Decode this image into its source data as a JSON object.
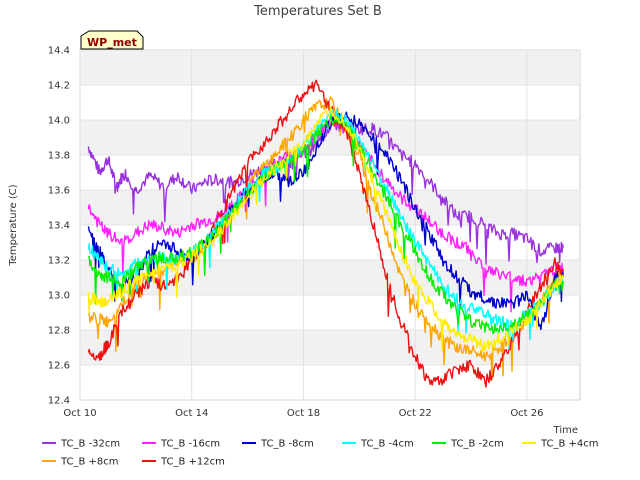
{
  "chart_data": {
    "type": "line",
    "title": "Temperatures Set B",
    "xlabel": "Time",
    "ylabel": "Temperature (C)",
    "badge": "WP_met",
    "ylim": [
      12.4,
      14.4
    ],
    "yticks": [
      "12.4",
      "12.6",
      "12.8",
      "13.0",
      "13.2",
      "13.4",
      "13.6",
      "13.8",
      "14.0",
      "14.2",
      "14.4"
    ],
    "xlim_days": [
      10,
      27.9
    ],
    "xticks": [
      {
        "day": 10,
        "label": "Oct 10"
      },
      {
        "day": 14,
        "label": "Oct 14"
      },
      {
        "day": 18,
        "label": "Oct 18"
      },
      {
        "day": 22,
        "label": "Oct 22"
      },
      {
        "day": 26,
        "label": "Oct 26"
      }
    ],
    "grid": true,
    "legend_position": "bottom",
    "series": [
      {
        "name": "TC_B -32cm",
        "color": "#9933dd",
        "points": [
          [
            10.3,
            13.85
          ],
          [
            10.7,
            13.7
          ],
          [
            11.0,
            13.78
          ],
          [
            11.3,
            13.62
          ],
          [
            11.6,
            13.7
          ],
          [
            12.0,
            13.6
          ],
          [
            12.5,
            13.68
          ],
          [
            13.0,
            13.62
          ],
          [
            13.5,
            13.68
          ],
          [
            14.0,
            13.6
          ],
          [
            14.5,
            13.65
          ],
          [
            15.0,
            13.66
          ],
          [
            15.5,
            13.64
          ],
          [
            16.0,
            13.68
          ],
          [
            16.5,
            13.72
          ],
          [
            17.0,
            13.75
          ],
          [
            17.5,
            13.8
          ],
          [
            18.0,
            13.8
          ],
          [
            18.5,
            13.86
          ],
          [
            19.0,
            13.98
          ],
          [
            19.5,
            13.95
          ],
          [
            20.0,
            13.95
          ],
          [
            20.5,
            13.95
          ],
          [
            21.0,
            13.9
          ],
          [
            21.5,
            13.8
          ],
          [
            22.0,
            13.75
          ],
          [
            22.5,
            13.65
          ],
          [
            23.0,
            13.55
          ],
          [
            23.5,
            13.45
          ],
          [
            24.0,
            13.45
          ],
          [
            24.5,
            13.4
          ],
          [
            25.0,
            13.35
          ],
          [
            25.5,
            13.35
          ],
          [
            26.0,
            13.32
          ],
          [
            26.5,
            13.25
          ],
          [
            27.0,
            13.27
          ],
          [
            27.3,
            13.27
          ]
        ]
      },
      {
        "name": "TC_B +8cm",
        "color": "#ffa500",
        "points": [
          [
            10.3,
            12.88
          ],
          [
            10.7,
            12.86
          ],
          [
            11.0,
            12.85
          ],
          [
            11.5,
            12.95
          ],
          [
            12.0,
            13.05
          ],
          [
            12.5,
            13.12
          ],
          [
            13.0,
            13.15
          ],
          [
            13.5,
            13.2
          ],
          [
            14.0,
            13.2
          ],
          [
            14.5,
            13.28
          ],
          [
            15.0,
            13.38
          ],
          [
            15.5,
            13.5
          ],
          [
            16.0,
            13.62
          ],
          [
            16.5,
            13.72
          ],
          [
            17.0,
            13.8
          ],
          [
            17.5,
            13.9
          ],
          [
            18.0,
            14.0
          ],
          [
            18.5,
            14.08
          ],
          [
            19.0,
            14.1
          ],
          [
            19.5,
            13.95
          ],
          [
            20.0,
            13.8
          ],
          [
            20.5,
            13.55
          ],
          [
            21.0,
            13.35
          ],
          [
            21.5,
            13.1
          ],
          [
            22.0,
            12.95
          ],
          [
            22.5,
            12.85
          ],
          [
            23.0,
            12.75
          ],
          [
            23.5,
            12.7
          ],
          [
            24.0,
            12.68
          ],
          [
            24.5,
            12.65
          ],
          [
            25.0,
            12.7
          ],
          [
            25.5,
            12.78
          ],
          [
            26.0,
            12.85
          ],
          [
            26.5,
            12.95
          ],
          [
            27.0,
            13.1
          ],
          [
            27.3,
            13.15
          ]
        ]
      },
      {
        "name": "TC_B -16cm",
        "color": "#ff22ff",
        "points": [
          [
            10.3,
            13.5
          ],
          [
            10.7,
            13.4
          ],
          [
            11.0,
            13.35
          ],
          [
            11.5,
            13.3
          ],
          [
            12.0,
            13.35
          ],
          [
            12.5,
            13.4
          ],
          [
            13.0,
            13.38
          ],
          [
            13.5,
            13.35
          ],
          [
            14.0,
            13.4
          ],
          [
            14.5,
            13.42
          ],
          [
            15.0,
            13.45
          ],
          [
            15.5,
            13.52
          ],
          [
            16.0,
            13.6
          ],
          [
            16.5,
            13.68
          ],
          [
            17.0,
            13.75
          ],
          [
            17.5,
            13.8
          ],
          [
            18.0,
            13.82
          ],
          [
            18.5,
            13.9
          ],
          [
            19.0,
            14.0
          ],
          [
            19.5,
            13.95
          ],
          [
            20.0,
            13.85
          ],
          [
            20.5,
            13.75
          ],
          [
            21.0,
            13.65
          ],
          [
            21.5,
            13.55
          ],
          [
            22.0,
            13.5
          ],
          [
            22.5,
            13.42
          ],
          [
            23.0,
            13.35
          ],
          [
            23.5,
            13.3
          ],
          [
            24.0,
            13.25
          ],
          [
            24.5,
            13.15
          ],
          [
            25.0,
            13.12
          ],
          [
            25.5,
            13.1
          ],
          [
            26.0,
            13.08
          ],
          [
            26.5,
            13.1
          ],
          [
            27.0,
            13.15
          ],
          [
            27.3,
            13.15
          ]
        ]
      },
      {
        "name": "TC_B +12cm",
        "color": "#ee1111",
        "points": [
          [
            10.3,
            12.68
          ],
          [
            10.7,
            12.65
          ],
          [
            11.0,
            12.72
          ],
          [
            11.5,
            12.9
          ],
          [
            12.0,
            13.0
          ],
          [
            12.5,
            13.08
          ],
          [
            13.0,
            13.05
          ],
          [
            13.5,
            13.1
          ],
          [
            14.0,
            13.2
          ],
          [
            14.5,
            13.3
          ],
          [
            15.0,
            13.45
          ],
          [
            15.5,
            13.6
          ],
          [
            16.0,
            13.75
          ],
          [
            16.5,
            13.85
          ],
          [
            17.0,
            13.95
          ],
          [
            17.5,
            14.05
          ],
          [
            18.0,
            14.15
          ],
          [
            18.5,
            14.2
          ],
          [
            19.0,
            14.05
          ],
          [
            19.5,
            13.95
          ],
          [
            20.0,
            13.7
          ],
          [
            20.5,
            13.4
          ],
          [
            21.0,
            13.1
          ],
          [
            21.5,
            12.85
          ],
          [
            22.0,
            12.65
          ],
          [
            22.5,
            12.5
          ],
          [
            23.0,
            12.52
          ],
          [
            23.5,
            12.58
          ],
          [
            24.0,
            12.6
          ],
          [
            24.5,
            12.5
          ],
          [
            25.0,
            12.6
          ],
          [
            25.5,
            12.75
          ],
          [
            26.0,
            12.9
          ],
          [
            26.5,
            13.05
          ],
          [
            27.0,
            13.18
          ],
          [
            27.3,
            13.12
          ]
        ]
      },
      {
        "name": "TC_B -8cm",
        "color": "#0000cc",
        "points": [
          [
            10.3,
            13.4
          ],
          [
            10.7,
            13.25
          ],
          [
            11.0,
            13.15
          ],
          [
            11.5,
            13.05
          ],
          [
            12.0,
            13.1
          ],
          [
            12.5,
            13.25
          ],
          [
            13.0,
            13.3
          ],
          [
            13.5,
            13.25
          ],
          [
            14.0,
            13.2
          ],
          [
            14.5,
            13.3
          ],
          [
            15.0,
            13.4
          ],
          [
            15.5,
            13.5
          ],
          [
            16.0,
            13.6
          ],
          [
            16.5,
            13.65
          ],
          [
            17.0,
            13.7
          ],
          [
            17.5,
            13.65
          ],
          [
            18.0,
            13.7
          ],
          [
            18.5,
            13.85
          ],
          [
            19.0,
            14.0
          ],
          [
            19.5,
            14.02
          ],
          [
            20.0,
            13.98
          ],
          [
            20.5,
            13.9
          ],
          [
            21.0,
            13.8
          ],
          [
            21.5,
            13.65
          ],
          [
            22.0,
            13.5
          ],
          [
            22.5,
            13.35
          ],
          [
            23.0,
            13.2
          ],
          [
            23.5,
            13.1
          ],
          [
            24.0,
            13.02
          ],
          [
            24.5,
            12.98
          ],
          [
            25.0,
            12.95
          ],
          [
            25.5,
            12.95
          ],
          [
            26.0,
            13.0
          ],
          [
            26.5,
            12.8
          ],
          [
            27.0,
            13.1
          ],
          [
            27.3,
            13.1
          ]
        ]
      },
      {
        "name": "TC_B -4cm",
        "color": "#00ffff",
        "points": [
          [
            10.3,
            13.28
          ],
          [
            10.7,
            13.2
          ],
          [
            11.0,
            13.15
          ],
          [
            11.5,
            13.12
          ],
          [
            12.0,
            13.18
          ],
          [
            12.5,
            13.2
          ],
          [
            13.0,
            13.22
          ],
          [
            13.5,
            13.2
          ],
          [
            14.0,
            13.25
          ],
          [
            14.5,
            13.3
          ],
          [
            15.0,
            13.4
          ],
          [
            15.5,
            13.5
          ],
          [
            16.0,
            13.6
          ],
          [
            16.5,
            13.68
          ],
          [
            17.0,
            13.72
          ],
          [
            17.5,
            13.78
          ],
          [
            18.0,
            13.85
          ],
          [
            18.5,
            13.95
          ],
          [
            19.0,
            14.05
          ],
          [
            19.5,
            14.0
          ],
          [
            20.0,
            13.88
          ],
          [
            20.5,
            13.75
          ],
          [
            21.0,
            13.6
          ],
          [
            21.5,
            13.45
          ],
          [
            22.0,
            13.3
          ],
          [
            22.5,
            13.18
          ],
          [
            23.0,
            13.05
          ],
          [
            23.5,
            12.98
          ],
          [
            24.0,
            12.92
          ],
          [
            24.5,
            12.9
          ],
          [
            25.0,
            12.85
          ],
          [
            25.5,
            12.82
          ],
          [
            26.0,
            12.9
          ],
          [
            26.5,
            12.95
          ],
          [
            27.0,
            13.05
          ],
          [
            27.3,
            13.1
          ]
        ]
      },
      {
        "name": "TC_B -2cm",
        "color": "#00ee00",
        "points": [
          [
            10.3,
            13.2
          ],
          [
            10.7,
            13.12
          ],
          [
            11.0,
            13.1
          ],
          [
            11.5,
            13.08
          ],
          [
            12.0,
            13.15
          ],
          [
            12.5,
            13.2
          ],
          [
            13.0,
            13.22
          ],
          [
            13.5,
            13.2
          ],
          [
            14.0,
            13.25
          ],
          [
            14.5,
            13.3
          ],
          [
            15.0,
            13.38
          ],
          [
            15.5,
            13.48
          ],
          [
            16.0,
            13.58
          ],
          [
            16.5,
            13.66
          ],
          [
            17.0,
            13.72
          ],
          [
            17.5,
            13.76
          ],
          [
            18.0,
            13.82
          ],
          [
            18.5,
            13.92
          ],
          [
            19.0,
            14.0
          ],
          [
            19.5,
            13.98
          ],
          [
            20.0,
            13.85
          ],
          [
            20.5,
            13.7
          ],
          [
            21.0,
            13.55
          ],
          [
            21.5,
            13.4
          ],
          [
            22.0,
            13.25
          ],
          [
            22.5,
            13.1
          ],
          [
            23.0,
            13.0
          ],
          [
            23.5,
            12.92
          ],
          [
            24.0,
            12.85
          ],
          [
            24.5,
            12.82
          ],
          [
            25.0,
            12.8
          ],
          [
            25.5,
            12.82
          ],
          [
            26.0,
            12.88
          ],
          [
            26.5,
            12.95
          ],
          [
            27.0,
            13.05
          ],
          [
            27.3,
            13.08
          ]
        ]
      },
      {
        "name": "TC_B +4cm",
        "color": "#ffee00",
        "points": [
          [
            10.3,
            13.0
          ],
          [
            10.7,
            12.95
          ],
          [
            11.0,
            12.98
          ],
          [
            11.5,
            13.02
          ],
          [
            12.0,
            13.08
          ],
          [
            12.5,
            13.12
          ],
          [
            13.0,
            13.15
          ],
          [
            13.5,
            13.18
          ],
          [
            14.0,
            13.22
          ],
          [
            14.5,
            13.28
          ],
          [
            15.0,
            13.36
          ],
          [
            15.5,
            13.46
          ],
          [
            16.0,
            13.56
          ],
          [
            16.5,
            13.65
          ],
          [
            17.0,
            13.72
          ],
          [
            17.5,
            13.8
          ],
          [
            18.0,
            13.88
          ],
          [
            18.5,
            13.98
          ],
          [
            19.0,
            14.05
          ],
          [
            19.5,
            13.98
          ],
          [
            20.0,
            13.85
          ],
          [
            20.5,
            13.65
          ],
          [
            21.0,
            13.45
          ],
          [
            21.5,
            13.25
          ],
          [
            22.0,
            13.08
          ],
          [
            22.5,
            12.95
          ],
          [
            23.0,
            12.85
          ],
          [
            23.5,
            12.78
          ],
          [
            24.0,
            12.75
          ],
          [
            24.5,
            12.7
          ],
          [
            25.0,
            12.75
          ],
          [
            25.5,
            12.8
          ],
          [
            26.0,
            12.85
          ],
          [
            26.5,
            12.95
          ],
          [
            27.0,
            13.05
          ],
          [
            27.3,
            13.1
          ]
        ]
      }
    ],
    "legend_rows": [
      [
        "TC_B -32cm",
        "TC_B -16cm",
        "TC_B -8cm",
        "TC_B -4cm",
        "TC_B -2cm",
        "TC_B +4cm"
      ],
      [
        "TC_B +8cm",
        "TC_B +12cm"
      ]
    ]
  }
}
